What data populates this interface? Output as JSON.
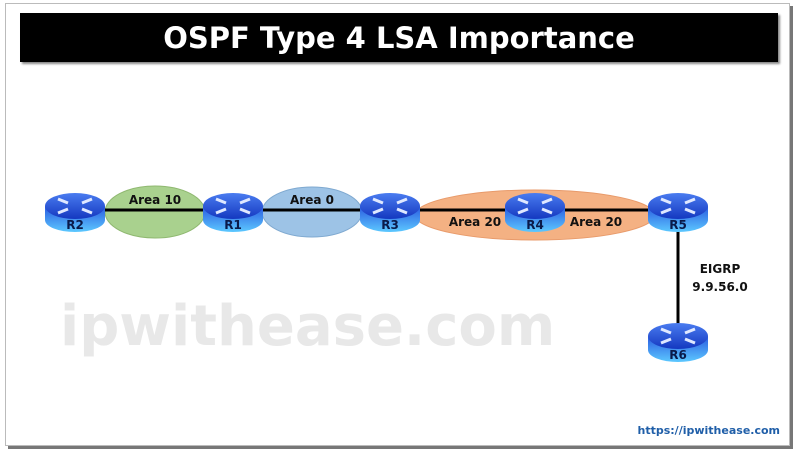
{
  "title": "OSPF Type 4 LSA Importance",
  "watermark": "ipwithease.com",
  "url": "https://ipwithease.com",
  "routers": [
    "R1",
    "R2",
    "R3",
    "R4",
    "R5",
    "R6"
  ],
  "areas": {
    "area10": "Area 10",
    "area0": "Area 0",
    "area20_left": "Area 20",
    "area20_right": "Area 20"
  },
  "eigrp": {
    "label": "EIGRP",
    "network": "9.9.56.0"
  },
  "colors": {
    "area10": "#a9d18e",
    "area0": "#9dc3e6",
    "area20": "#f4b183",
    "router": "#1a4fd0"
  }
}
